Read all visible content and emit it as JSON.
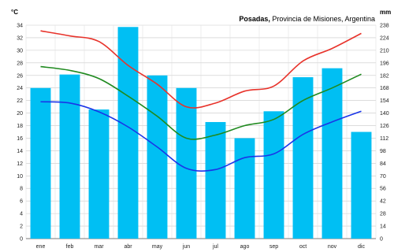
{
  "chart_data": {
    "type": "bar+line",
    "title_bold": "Posadas,",
    "title_rest": " Provincia de Misiones, Argentina",
    "left_unit": "°C",
    "right_unit": "mm",
    "categories": [
      "ene",
      "feb",
      "mar",
      "abr",
      "may",
      "jun",
      "jul",
      "ago",
      "sep",
      "oct",
      "nov",
      "dic"
    ],
    "left_axis": {
      "min": 0,
      "max": 34,
      "step": 2
    },
    "right_axis": {
      "min": 0,
      "max": 238,
      "step": 14
    },
    "bars": {
      "values": [
        168,
        183,
        144,
        236,
        182,
        168,
        130,
        112,
        142,
        180,
        190,
        119
      ],
      "color": "#00bff3"
    },
    "lines": [
      {
        "values": [
          33.1,
          32.3,
          31.4,
          27.6,
          24.6,
          21.0,
          21.6,
          23.5,
          24.3,
          28.3,
          30.3,
          32.7
        ],
        "color": "#e8332b"
      },
      {
        "values": [
          27.4,
          26.8,
          25.5,
          22.7,
          19.5,
          16.0,
          16.5,
          18.0,
          19.0,
          22.0,
          24.0,
          26.2
        ],
        "color": "#1f8a1f"
      },
      {
        "values": [
          21.8,
          21.6,
          20.2,
          17.8,
          14.6,
          11.2,
          11.0,
          12.9,
          13.5,
          16.6,
          18.6,
          20.3
        ],
        "color": "#1a35e8"
      }
    ],
    "grid": true
  }
}
